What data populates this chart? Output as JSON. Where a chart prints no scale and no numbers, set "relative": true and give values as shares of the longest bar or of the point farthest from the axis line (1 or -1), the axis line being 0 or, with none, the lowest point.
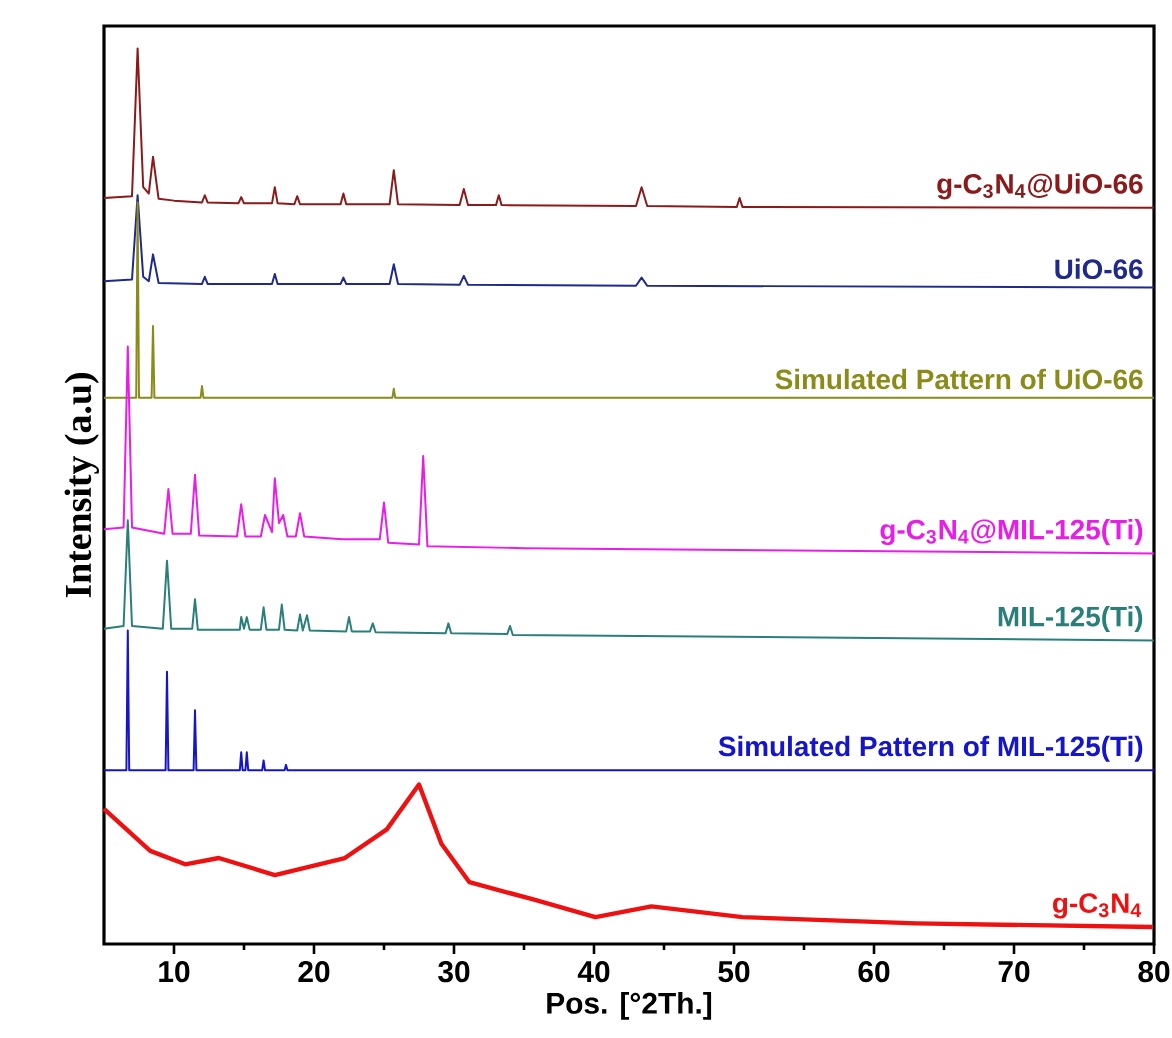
{
  "chart_data": {
    "type": "line",
    "relative": true,
    "xlabel": "Pos. [°2Th.]",
    "ylabel": "Intensity (a.u)",
    "xlim": [
      5,
      80
    ],
    "xticks": [
      10,
      20,
      30,
      40,
      50,
      60,
      70,
      80
    ],
    "tick_labels": "x",
    "series": [
      {
        "name": "g-C$_{3}$N$_{4}$@UiO-66",
        "color": "#8b1a1a",
        "x": [
          5,
          7.0,
          7.4,
          7.8,
          8.2,
          8.5,
          8.9,
          10,
          12.0,
          12.2,
          12.4,
          14.6,
          14.8,
          15.0,
          17.0,
          17.2,
          17.4,
          18.6,
          18.8,
          19.0,
          21.9,
          22.1,
          22.3,
          25.4,
          25.7,
          26.0,
          30.4,
          30.7,
          31.0,
          33.0,
          33.2,
          33.4,
          43.0,
          43.4,
          43.8,
          50.2,
          50.4,
          50.6,
          80
        ],
        "values": [
          0.833,
          0.835,
          1.0,
          0.845,
          0.838,
          0.879,
          0.832,
          0.83,
          0.828,
          0.836,
          0.828,
          0.827,
          0.834,
          0.827,
          0.827,
          0.845,
          0.827,
          0.826,
          0.835,
          0.826,
          0.826,
          0.838,
          0.826,
          0.826,
          0.864,
          0.826,
          0.825,
          0.843,
          0.825,
          0.825,
          0.836,
          0.825,
          0.824,
          0.845,
          0.824,
          0.823,
          0.833,
          0.823,
          0.822
        ]
      },
      {
        "name": "UiO-66",
        "color": "#1f2a8a",
        "x": [
          5,
          7.0,
          7.4,
          7.8,
          8.2,
          8.5,
          8.9,
          12.0,
          12.2,
          12.4,
          17.0,
          17.2,
          17.4,
          21.9,
          22.1,
          22.3,
          25.4,
          25.7,
          26.0,
          30.4,
          30.7,
          31.0,
          43.0,
          43.4,
          43.8,
          80
        ],
        "values": [
          0.74,
          0.742,
          0.836,
          0.745,
          0.74,
          0.77,
          0.738,
          0.737,
          0.745,
          0.737,
          0.737,
          0.748,
          0.737,
          0.737,
          0.744,
          0.737,
          0.737,
          0.759,
          0.737,
          0.736,
          0.746,
          0.736,
          0.735,
          0.744,
          0.735,
          0.733
        ]
      },
      {
        "name": "Simulated Pattern of UiO-66",
        "color": "#8b8b1a",
        "x": [
          5,
          7.3,
          7.4,
          7.5,
          8.4,
          8.5,
          8.6,
          11.9,
          12.0,
          12.1,
          25.6,
          25.7,
          25.8,
          80
        ],
        "values": [
          0.61,
          0.61,
          0.828,
          0.61,
          0.61,
          0.69,
          0.61,
          0.61,
          0.623,
          0.61,
          0.61,
          0.62,
          0.61,
          0.61
        ]
      },
      {
        "name": "g-C$_{3}$N$_{4}$@MIL-125(Ti)",
        "color": "#e81ee8",
        "x": [
          5,
          6.4,
          6.7,
          7.0,
          9.3,
          9.6,
          9.9,
          11.2,
          11.5,
          11.8,
          14.5,
          14.8,
          15.1,
          16.2,
          16.5,
          17.0,
          17.2,
          17.5,
          17.8,
          18.1,
          18.7,
          19.0,
          19.3,
          22,
          24.7,
          25.0,
          25.3,
          27.5,
          27.8,
          28.1,
          35,
          50,
          80
        ],
        "values": [
          0.463,
          0.465,
          0.667,
          0.465,
          0.458,
          0.508,
          0.458,
          0.458,
          0.524,
          0.456,
          0.455,
          0.491,
          0.455,
          0.455,
          0.479,
          0.46,
          0.52,
          0.47,
          0.479,
          0.455,
          0.455,
          0.481,
          0.455,
          0.452,
          0.452,
          0.493,
          0.448,
          0.446,
          0.545,
          0.444,
          0.442,
          0.44,
          0.436
        ]
      },
      {
        "name": "MIL-125(Ti)",
        "color": "#2a7f7a",
        "x": [
          5,
          6.4,
          6.7,
          7.0,
          9.2,
          9.5,
          9.8,
          11.3,
          11.5,
          11.7,
          14.7,
          14.8,
          15.0,
          15.2,
          15.4,
          16.2,
          16.4,
          16.6,
          17.5,
          17.7,
          17.9,
          18.8,
          19.0,
          19.2,
          19.5,
          19.7,
          22.3,
          22.5,
          22.7,
          24.0,
          24.2,
          24.4,
          29.4,
          29.6,
          29.8,
          33.8,
          34.0,
          34.2,
          80
        ],
        "values": [
          0.352,
          0.355,
          0.473,
          0.355,
          0.352,
          0.428,
          0.352,
          0.352,
          0.385,
          0.351,
          0.351,
          0.365,
          0.352,
          0.365,
          0.351,
          0.351,
          0.376,
          0.351,
          0.351,
          0.379,
          0.351,
          0.35,
          0.368,
          0.35,
          0.367,
          0.35,
          0.349,
          0.365,
          0.349,
          0.349,
          0.358,
          0.348,
          0.347,
          0.358,
          0.347,
          0.346,
          0.355,
          0.345,
          0.339
        ]
      },
      {
        "name": "Simulated Pattern of MIL-125(Ti)",
        "color": "#1515cc",
        "x": [
          5,
          6.6,
          6.7,
          6.8,
          9.4,
          9.5,
          9.6,
          11.4,
          11.5,
          11.6,
          14.7,
          14.8,
          14.9,
          15.1,
          15.2,
          15.3,
          16.3,
          16.4,
          16.5,
          17.9,
          18.0,
          18.1,
          80
        ],
        "values": [
          0.194,
          0.194,
          0.35,
          0.194,
          0.194,
          0.304,
          0.194,
          0.194,
          0.261,
          0.194,
          0.194,
          0.214,
          0.194,
          0.194,
          0.214,
          0.194,
          0.194,
          0.205,
          0.194,
          0.194,
          0.2,
          0.194,
          0.194
        ]
      },
      {
        "name": "g-C$_{3}$N$_{4}$",
        "color": "#ee1111",
        "x": [
          5,
          8.3,
          10.8,
          13.2,
          17.2,
          22.2,
          25.2,
          27.5,
          29.1,
          31.1,
          35.6,
          40.1,
          44.1,
          50.6,
          63,
          79.9
        ],
        "values": [
          0.151,
          0.104,
          0.089,
          0.096,
          0.077,
          0.096,
          0.128,
          0.178,
          0.112,
          0.069,
          0.05,
          0.03,
          0.042,
          0.03,
          0.023,
          0.019
        ]
      }
    ]
  }
}
